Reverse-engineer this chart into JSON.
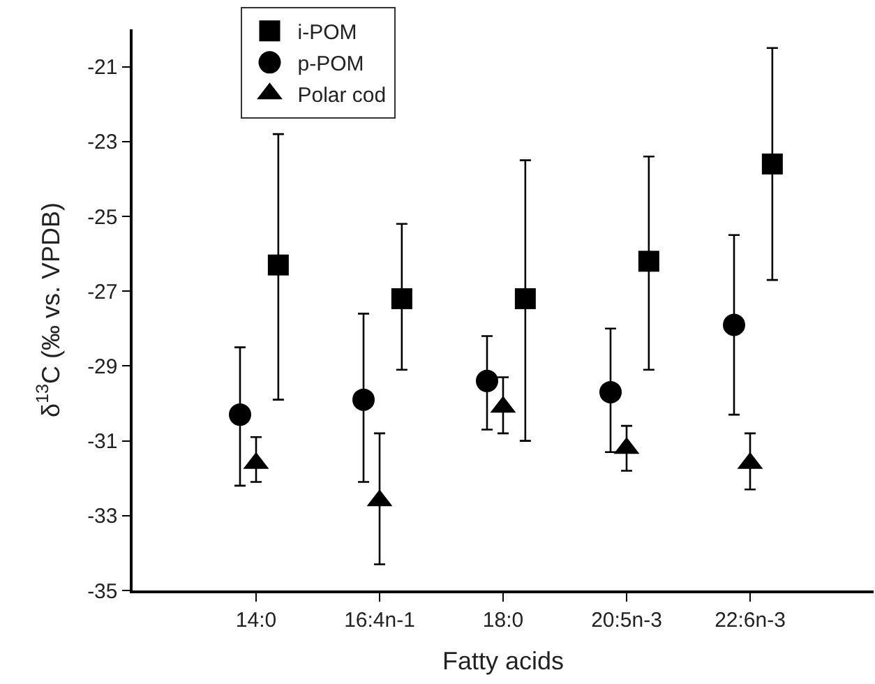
{
  "chart_data": {
    "type": "scatter",
    "xlabel": "Fatty acids",
    "ylabel": "δ$^{13}$C (‰ vs. VPDB)",
    "categories": [
      "14:0",
      "16:4n-1",
      "18:0",
      "20:5n-3",
      "22:6n-3"
    ],
    "ylim": [
      -35,
      -20
    ],
    "yticks": [
      -35,
      -33,
      -31,
      -29,
      -27,
      -25,
      -23,
      -21
    ],
    "legend": "top",
    "series": [
      {
        "name": "i-POM",
        "color": "#000000",
        "marker": "square",
        "values": [
          -26.3,
          -27.2,
          -27.2,
          -26.2,
          -23.6
        ],
        "errors": [
          [
            -29.9,
            -22.8
          ],
          [
            -29.1,
            -25.2
          ],
          [
            -31.0,
            -23.5
          ],
          [
            -29.1,
            -23.4
          ],
          [
            -26.7,
            -20.5
          ]
        ]
      },
      {
        "name": "p-POM",
        "color": "#000000",
        "marker": "circle",
        "values": [
          -30.3,
          -29.9,
          -29.4,
          -29.7,
          -27.9
        ],
        "errors": [
          [
            -32.2,
            -28.5
          ],
          [
            -32.1,
            -27.6
          ],
          [
            -30.7,
            -28.2
          ],
          [
            -31.3,
            -28.0
          ],
          [
            -30.3,
            -25.5
          ]
        ]
      },
      {
        "name": "Polar cod",
        "color": "#000000",
        "marker": "triangle",
        "values": [
          -31.6,
          -32.6,
          -30.1,
          -31.2,
          -31.6
        ],
        "errors": [
          [
            -32.1,
            -30.9
          ],
          [
            -34.3,
            -30.8
          ],
          [
            -30.8,
            -29.3
          ],
          [
            -31.8,
            -30.6
          ],
          [
            -32.3,
            -30.8
          ]
        ]
      }
    ]
  }
}
